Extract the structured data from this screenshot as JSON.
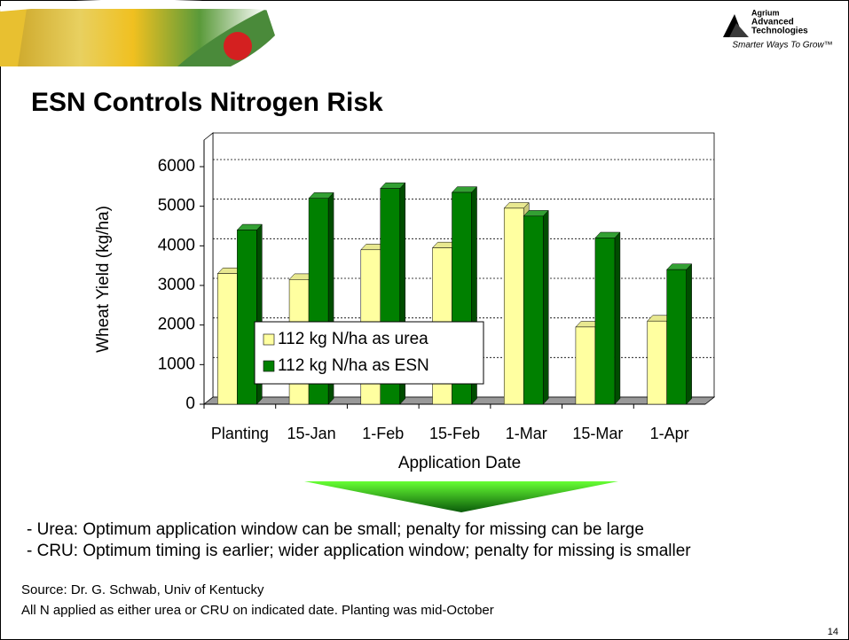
{
  "chart_data": {
    "type": "bar",
    "title": "ESN Controls Nitrogen Risk",
    "x_label": "Application Date",
    "y_label": "Wheat Yield (kg/ha)",
    "categories": [
      "Planting",
      "15-Jan",
      "1-Feb",
      "15-Feb",
      "1-Mar",
      "15-Mar",
      "1-Apr"
    ],
    "series": [
      {
        "name": "112 kg N/ha as urea",
        "color": "#ffffa0",
        "values": [
          3300,
          3150,
          3900,
          3950,
          4950,
          1950,
          2100
        ]
      },
      {
        "name": "112 kg N/ha as ESN",
        "color": "#008000",
        "values": [
          4400,
          5200,
          5450,
          5350,
          4750,
          4200,
          3400
        ]
      }
    ],
    "ylim": [
      0,
      6000
    ],
    "yticks": [
      0,
      1000,
      2000,
      3000,
      4000,
      5000,
      6000
    ],
    "grid": true
  },
  "slide": {
    "logo": {
      "name_lines": [
        "Agrium",
        "Advanced",
        "Technologies"
      ],
      "tagline": "Smarter Ways To Grow™"
    },
    "bullets": [
      "- Urea: Optimum application window can be small; penalty for missing can be large",
      "- CRU: Optimum timing is earlier; wider application window; penalty for missing is smaller"
    ],
    "source": [
      "Source:  Dr. G. Schwab, Univ of Kentucky",
      "All N applied as either urea or CRU on indicated date.  Planting was mid-October"
    ],
    "page_number": "14"
  }
}
